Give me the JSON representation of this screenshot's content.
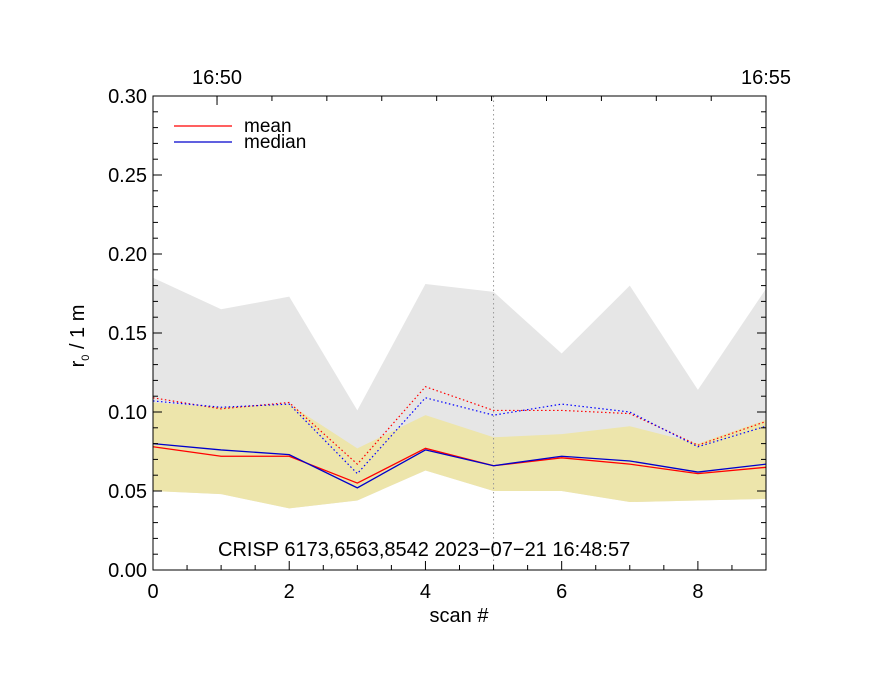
{
  "chart_data": {
    "type": "line",
    "xlabel": "scan #",
    "ylabel_main": "r",
    "ylabel_sub": "0",
    "ylabel_rest": " / 1 m",
    "xlim": [
      0,
      9
    ],
    "ylim": [
      0.0,
      0.3
    ],
    "x_ticks": [
      0,
      2,
      4,
      6,
      8
    ],
    "x_tick_labels": [
      "0",
      "2",
      "4",
      "6",
      "8"
    ],
    "y_ticks": [
      0.0,
      0.05,
      0.1,
      0.15,
      0.2,
      0.25,
      0.3
    ],
    "y_tick_labels": [
      "0.00",
      "0.05",
      "0.10",
      "0.15",
      "0.20",
      "0.25",
      "0.30"
    ],
    "top_axis": [
      {
        "x": 0.94,
        "label": "16:50"
      },
      {
        "x": 9.0,
        "label": "16:55"
      }
    ],
    "vertical_marker_x": 5,
    "annotation": "CRISP 6173,6563,8542 2023−07−21 16:48:57",
    "x": [
      0,
      1,
      2,
      3,
      4,
      5,
      6,
      7,
      8,
      9
    ],
    "bands": [
      {
        "name": "max-range",
        "color": "#e6e6e6",
        "upper": [
          0.185,
          0.165,
          0.173,
          0.101,
          0.181,
          0.176,
          0.137,
          0.18,
          0.114,
          0.178
        ],
        "lower": [
          0.05,
          0.048,
          0.039,
          0.044,
          0.063,
          0.05,
          0.05,
          0.043,
          0.044,
          0.045
        ]
      },
      {
        "name": "spread",
        "color": "#ede5ab",
        "upper": [
          0.106,
          0.103,
          0.105,
          0.077,
          0.098,
          0.084,
          0.086,
          0.091,
          0.08,
          0.095
        ],
        "lower": [
          0.05,
          0.048,
          0.039,
          0.044,
          0.063,
          0.05,
          0.05,
          0.043,
          0.044,
          0.045
        ]
      }
    ],
    "series": [
      {
        "name": "mean",
        "color": "#ff0000",
        "style": "solid",
        "values": [
          0.078,
          0.072,
          0.072,
          0.055,
          0.077,
          0.066,
          0.071,
          0.067,
          0.061,
          0.065
        ]
      },
      {
        "name": "median",
        "color": "#0000cc",
        "style": "solid",
        "values": [
          0.08,
          0.076,
          0.073,
          0.052,
          0.076,
          0.066,
          0.072,
          0.069,
          0.062,
          0.067
        ]
      },
      {
        "name": "mean-dotted",
        "color": "#ff0000",
        "style": "dotted",
        "values": [
          0.109,
          0.102,
          0.106,
          0.067,
          0.116,
          0.101,
          0.101,
          0.099,
          0.079,
          0.094
        ]
      },
      {
        "name": "median-dotted",
        "color": "#0000ff",
        "style": "dotted",
        "values": [
          0.107,
          0.103,
          0.105,
          0.061,
          0.109,
          0.098,
          0.105,
          0.1,
          0.078,
          0.091
        ]
      }
    ],
    "legend": [
      {
        "label": "mean",
        "color": "#ff0000"
      },
      {
        "label": "median",
        "color": "#0000cc"
      }
    ],
    "legend_position": "top-left"
  }
}
